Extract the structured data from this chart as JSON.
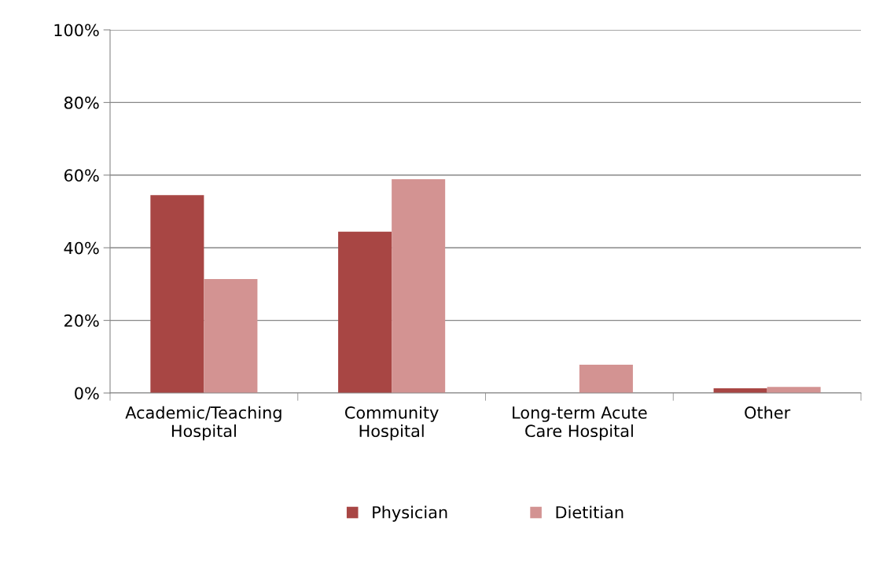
{
  "chart_data": {
    "type": "bar",
    "categories": [
      "Academic/Teaching\nHospital",
      "Community\nHospital",
      "Long-term Acute\nCare Hospital",
      "Other"
    ],
    "series": [
      {
        "name": "Physician",
        "color": "#a84644",
        "values": [
          54.5,
          44.4,
          0,
          1.3
        ]
      },
      {
        "name": "Dietitian",
        "color": "#d39392",
        "values": [
          31.4,
          58.9,
          7.8,
          1.7
        ]
      }
    ],
    "ylim": [
      0,
      100
    ],
    "yticks": [
      {
        "value": 0,
        "label": "0%"
      },
      {
        "value": 20,
        "label": "20%"
      },
      {
        "value": 40,
        "label": "40%"
      },
      {
        "value": 60,
        "label": "60%"
      },
      {
        "value": 80,
        "label": "80%"
      },
      {
        "value": 100,
        "label": "100%"
      }
    ],
    "grid": "y",
    "legend": "bottom"
  }
}
